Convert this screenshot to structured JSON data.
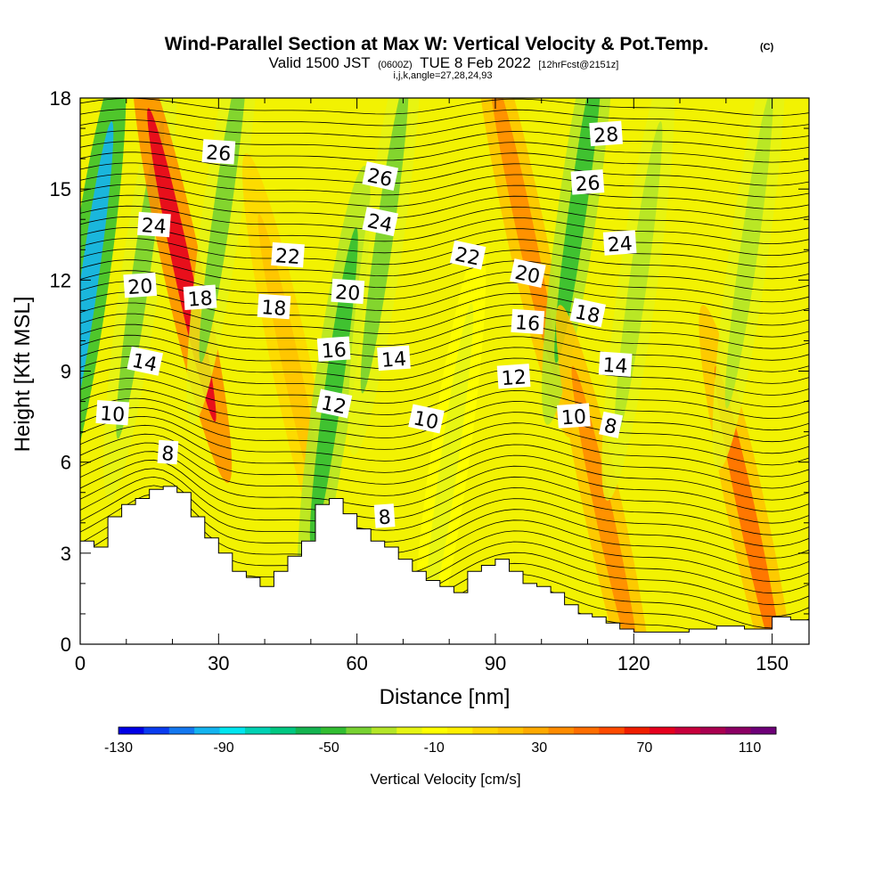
{
  "chart_data": {
    "type": "heatmap",
    "title": "Wind-Parallel Section at Max W: Vertical Velocity & Pot.Temp.",
    "title_mark": "(C)",
    "subtitle_prefix": "Valid 1500 JST",
    "subtitle_utc": "(0600Z)",
    "subtitle_date": "TUE 8 Feb 2022",
    "subtitle_run": "[12hrFcst@2151z]",
    "subtitle_extra": "i,j,k,angle=27,28,24,93",
    "xlabel": "Distance [nm]",
    "ylabel": "Height [Kft MSL]",
    "xlim": [
      0,
      158
    ],
    "ylim": [
      0,
      18
    ],
    "x_ticks": [
      0,
      30,
      60,
      90,
      120,
      150
    ],
    "y_ticks": [
      0,
      3,
      6,
      9,
      12,
      15,
      18
    ],
    "colorbar": {
      "title": "Vertical Velocity [cm/s]",
      "min": -130,
      "max": 120,
      "step": 10,
      "tick_labels": [
        -130,
        -90,
        -50,
        -10,
        30,
        70,
        110
      ],
      "colors": [
        "#0000e6",
        "#0a3cf0",
        "#1478f0",
        "#14b4f0",
        "#00e6f0",
        "#00d2b4",
        "#00c882",
        "#14b450",
        "#32be32",
        "#78d232",
        "#b4e628",
        "#e6f514",
        "#ffff00",
        "#fff000",
        "#ffd700",
        "#ffc300",
        "#ffaa00",
        "#ff8c00",
        "#ff6e00",
        "#ff4b00",
        "#f01e00",
        "#e6001e",
        "#c8003c",
        "#aa0050",
        "#8c0064",
        "#6e0078"
      ]
    },
    "terrain_height_kft": [
      [
        0,
        3.4
      ],
      [
        3,
        3.2
      ],
      [
        6,
        4.2
      ],
      [
        9,
        4.6
      ],
      [
        12,
        4.8
      ],
      [
        15,
        5.1
      ],
      [
        18,
        5.2
      ],
      [
        21,
        5.0
      ],
      [
        24,
        4.2
      ],
      [
        27,
        3.5
      ],
      [
        30,
        3.0
      ],
      [
        33,
        2.4
      ],
      [
        36,
        2.2
      ],
      [
        39,
        1.9
      ],
      [
        42,
        2.4
      ],
      [
        45,
        2.9
      ],
      [
        48,
        3.4
      ],
      [
        51,
        4.6
      ],
      [
        54,
        4.8
      ],
      [
        57,
        4.3
      ],
      [
        60,
        3.8
      ],
      [
        63,
        3.4
      ],
      [
        66,
        3.2
      ],
      [
        69,
        2.8
      ],
      [
        72,
        2.4
      ],
      [
        75,
        2.1
      ],
      [
        78,
        1.9
      ],
      [
        81,
        1.7
      ],
      [
        84,
        2.4
      ],
      [
        87,
        2.6
      ],
      [
        90,
        2.8
      ],
      [
        93,
        2.4
      ],
      [
        96,
        2.0
      ],
      [
        99,
        1.9
      ],
      [
        102,
        1.7
      ],
      [
        105,
        1.3
      ],
      [
        108,
        1.0
      ],
      [
        111,
        0.9
      ],
      [
        114,
        0.7
      ],
      [
        117,
        0.5
      ],
      [
        120,
        0.4
      ],
      [
        126,
        0.4
      ],
      [
        132,
        0.5
      ],
      [
        138,
        0.6
      ],
      [
        144,
        0.5
      ],
      [
        150,
        0.9
      ],
      [
        154,
        0.8
      ],
      [
        158,
        1.0
      ]
    ],
    "vertical_velocity_features_cm_s": [
      {
        "x": 2,
        "z": 12.0,
        "value": -100
      },
      {
        "x": 13,
        "z": 12.0,
        "value": -40
      },
      {
        "x": 22,
        "z": 12.5,
        "value": 80
      },
      {
        "x": 31,
        "z": 14.5,
        "value": -40
      },
      {
        "x": 46,
        "z": 9.0,
        "value": 20
      },
      {
        "x": 55,
        "z": 8.5,
        "value": -50
      },
      {
        "x": 66,
        "z": 13.5,
        "value": -40
      },
      {
        "x": 80,
        "z": 6.0,
        "value": -20
      },
      {
        "x": 96,
        "z": 14.0,
        "value": 40
      },
      {
        "x": 108,
        "z": 14.5,
        "value": -50
      },
      {
        "x": 114,
        "z": 4.0,
        "value": 40
      },
      {
        "x": 121,
        "z": 12.0,
        "value": -30
      },
      {
        "x": 145,
        "z": 4.0,
        "value": 50
      },
      {
        "x": 145,
        "z": 13.0,
        "value": -30
      }
    ],
    "potential_temperature_labels": [
      {
        "text": "28",
        "x": 114,
        "z": 16.8
      },
      {
        "text": "26",
        "x": 30,
        "z": 16.2
      },
      {
        "text": "26",
        "x": 65,
        "z": 15.4
      },
      {
        "text": "26",
        "x": 110,
        "z": 15.2
      },
      {
        "text": "24",
        "x": 16,
        "z": 13.8
      },
      {
        "text": "24",
        "x": 65,
        "z": 13.9
      },
      {
        "text": "24",
        "x": 117,
        "z": 13.2
      },
      {
        "text": "22",
        "x": 45,
        "z": 12.8
      },
      {
        "text": "22",
        "x": 84,
        "z": 12.8
      },
      {
        "text": "20",
        "x": 13,
        "z": 11.8
      },
      {
        "text": "20",
        "x": 58,
        "z": 11.6
      },
      {
        "text": "20",
        "x": 97,
        "z": 12.2
      },
      {
        "text": "18",
        "x": 26,
        "z": 11.4
      },
      {
        "text": "18",
        "x": 42,
        "z": 11.1
      },
      {
        "text": "18",
        "x": 110,
        "z": 10.9
      },
      {
        "text": "16",
        "x": 55,
        "z": 9.7
      },
      {
        "text": "16",
        "x": 97,
        "z": 10.6
      },
      {
        "text": "14",
        "x": 14,
        "z": 9.3
      },
      {
        "text": "14",
        "x": 68,
        "z": 9.4
      },
      {
        "text": "14",
        "x": 116,
        "z": 9.2
      },
      {
        "text": "12",
        "x": 55,
        "z": 7.9
      },
      {
        "text": "12",
        "x": 94,
        "z": 8.8
      },
      {
        "text": "10",
        "x": 7,
        "z": 7.6
      },
      {
        "text": "10",
        "x": 75,
        "z": 7.4
      },
      {
        "text": "10",
        "x": 107,
        "z": 7.5
      },
      {
        "text": "8",
        "x": 19,
        "z": 6.3
      },
      {
        "text": "8",
        "x": 115,
        "z": 7.2
      },
      {
        "text": "8",
        "x": 66,
        "z": 4.2
      }
    ]
  }
}
